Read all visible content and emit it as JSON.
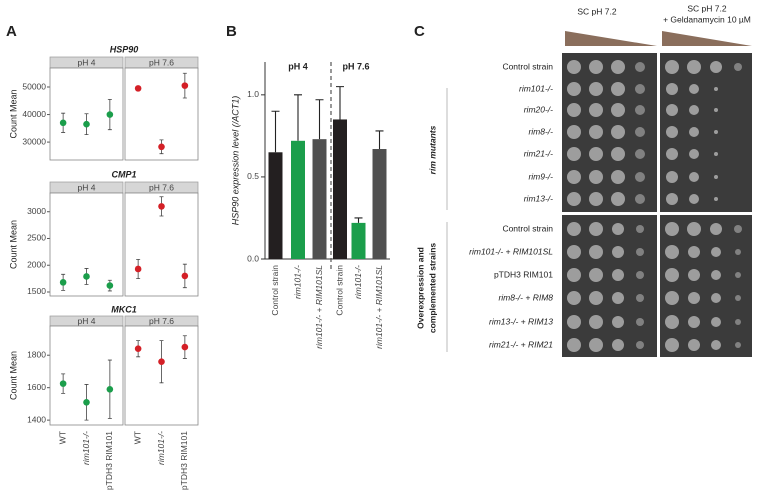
{
  "panel_labels": [
    "A",
    "B",
    "C"
  ],
  "chart_data": [
    {
      "type": "dot",
      "title": "HSP90",
      "y_label": "Count Mean",
      "series": [
        {
          "name": "pH 4",
          "color": "#1b9e4b",
          "values": [
            37000,
            36500,
            40000
          ],
          "errors": [
            3500,
            3800,
            5500
          ]
        },
        {
          "name": "pH 7.6",
          "color": "#d42027",
          "values": [
            49500,
            28300,
            50500
          ],
          "errors": [
            500,
            2500,
            4500
          ]
        }
      ],
      "ylim": [
        23500,
        56900
      ],
      "yticks": [
        30000,
        40000,
        50000
      ]
    },
    {
      "type": "dot",
      "title": "CMP1",
      "y_label": "Count Mean",
      "series": [
        {
          "name": "pH 4",
          "color": "#1b9e4b",
          "values": [
            1680,
            1790,
            1620
          ],
          "errors": [
            150,
            150,
            100
          ]
        },
        {
          "name": "pH 7.6",
          "color": "#d42027",
          "values": [
            1930,
            3100,
            1800
          ],
          "errors": [
            180,
            180,
            220
          ]
        }
      ],
      "ylim": [
        1425,
        3350
      ],
      "yticks": [
        1500,
        2000,
        2500,
        3000
      ]
    },
    {
      "type": "dot",
      "title": "MKC1",
      "y_label": "Count Mean",
      "categories": [
        "WT",
        "rim101-/-",
        "pTDH3 RIM101"
      ],
      "series": [
        {
          "name": "pH 4",
          "color": "#1b9e4b",
          "values": [
            1625,
            1510,
            1590
          ],
          "errors": [
            60,
            110,
            180
          ]
        },
        {
          "name": "pH 7.6",
          "color": "#d42027",
          "values": [
            1840,
            1760,
            1850
          ],
          "errors": [
            50,
            130,
            70
          ]
        }
      ],
      "ylim": [
        1370,
        1980
      ],
      "yticks": [
        1400,
        1600,
        1800
      ]
    },
    {
      "type": "bar",
      "y_label": "HSP90 expression level (/ACT1)",
      "categories": [
        "Control strain",
        "rim101-/-",
        "rim101-/- + RIM101SL",
        "Control strain",
        "rim101-/-",
        "rim101-/- + RIM101SL"
      ],
      "values": [
        0.65,
        0.72,
        0.73,
        0.85,
        0.22,
        0.67
      ],
      "errors": [
        0.25,
        0.28,
        0.24,
        0.2,
        0.03,
        0.11
      ],
      "colors": [
        "#231f20",
        "#1b9e4b",
        "#505050",
        "#231f20",
        "#1b9e4b",
        "#505050"
      ],
      "groups": [
        {
          "label": "pH 4",
          "color": "#1b9e4b"
        },
        {
          "label": "pH 7.6",
          "color": "#d42027"
        }
      ],
      "ylim": [
        0,
        1.2
      ],
      "yticks": [
        {
          "value": 0,
          "label": "0.0"
        },
        {
          "value": 0.5,
          "label": "0.5"
        },
        {
          "value": 1,
          "label": "1.0"
        }
      ]
    }
  ],
  "spot_assay": {
    "columns": [
      [
        "SC pH 7.2"
      ],
      [
        "SC pH 7.2",
        "+ Geldanamycin 10 µM"
      ]
    ],
    "blocks": [
      {
        "group": [
          "rim mutants"
        ],
        "rows": [
          "Control strain",
          "rim101-/-",
          "rim20-/-",
          "rim8-/-",
          "rim21-/-",
          "rim9-/-",
          "rim13-/-"
        ]
      },
      {
        "group": [
          "Overexpression and",
          "complemented strains"
        ],
        "rows": [
          "Control strain",
          "rim101-/- + RIM101SL",
          "pTDH3 RIM101",
          "rim8-/- + RIM8",
          "rim13-/- + RIM13",
          "rim21-/- + RIM21"
        ]
      }
    ]
  }
}
